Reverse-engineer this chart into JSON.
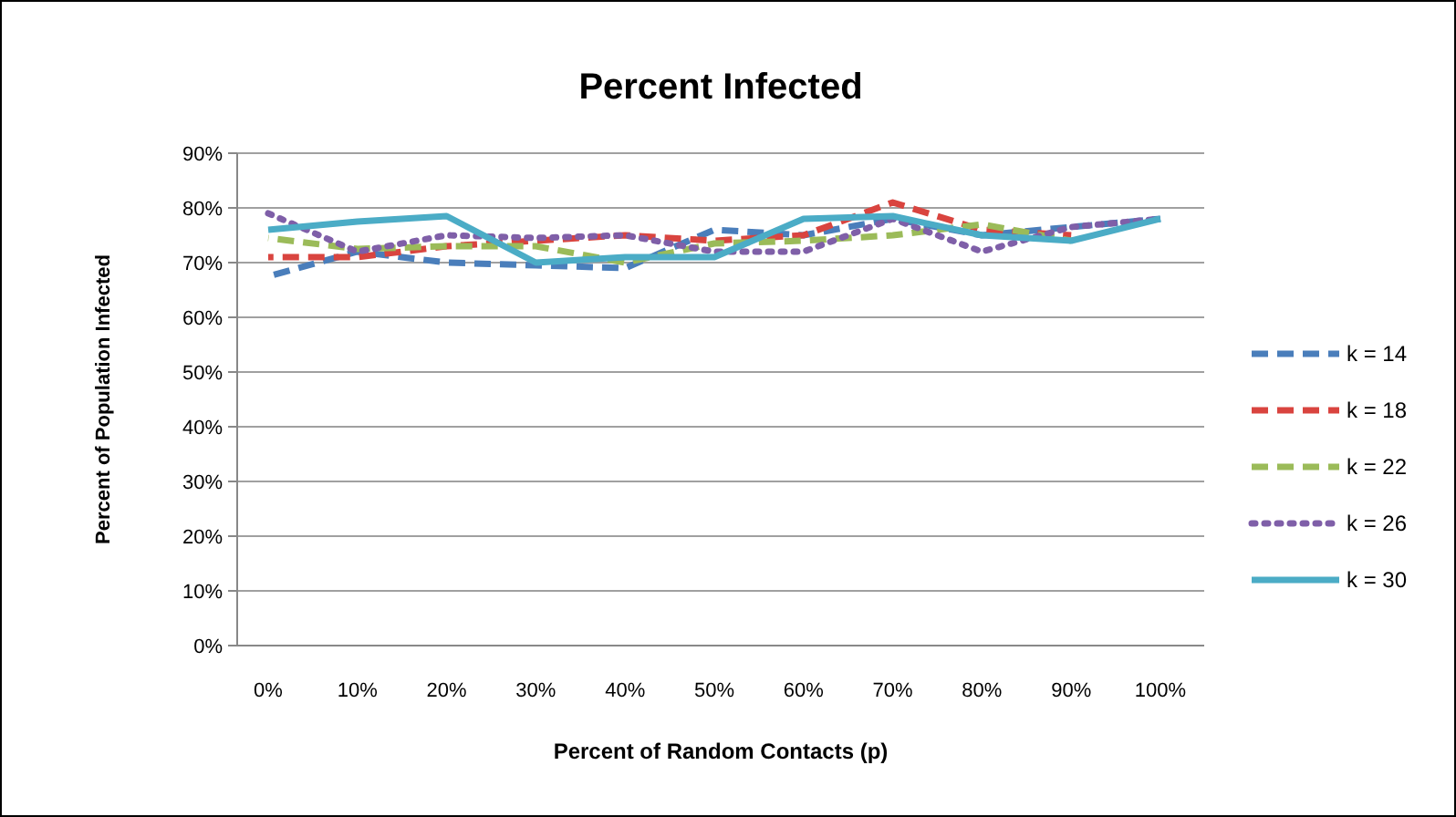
{
  "chart_data": {
    "type": "line",
    "title": "Percent Infected",
    "xlabel": "Percent of Random Contacts (p)",
    "ylabel": "Percent of Population Infected",
    "categories": [
      "0%",
      "10%",
      "20%",
      "30%",
      "40%",
      "50%",
      "60%",
      "70%",
      "80%",
      "90%",
      "100%"
    ],
    "ylim": [
      0,
      90
    ],
    "yticks": [
      {
        "value": 0,
        "label": "0%"
      },
      {
        "value": 10,
        "label": "10%"
      },
      {
        "value": 20,
        "label": "20%"
      },
      {
        "value": 30,
        "label": "30%"
      },
      {
        "value": 40,
        "label": "40%"
      },
      {
        "value": 50,
        "label": "50%"
      },
      {
        "value": 60,
        "label": "60%"
      },
      {
        "value": 70,
        "label": "70%"
      },
      {
        "value": 80,
        "label": "80%"
      },
      {
        "value": 90,
        "label": "90%"
      }
    ],
    "grid": "y",
    "legend": "right",
    "series": [
      {
        "name": "k = 14",
        "color": "#4a7ebb",
        "line_style": "dashed",
        "values": [
          67.5,
          72,
          70,
          69.5,
          69,
          76,
          75,
          78,
          75,
          76.5,
          78
        ]
      },
      {
        "name": "k = 18",
        "color": "#d9443f",
        "line_style": "dashed",
        "values": [
          71,
          71,
          73,
          74,
          75,
          74,
          75,
          81,
          76,
          75,
          null
        ]
      },
      {
        "name": "k = 22",
        "color": "#9bbb59",
        "line_style": "dashed",
        "values": [
          74.5,
          72.5,
          73,
          73,
          70,
          73.5,
          74,
          75,
          77,
          74,
          null
        ]
      },
      {
        "name": "k = 26",
        "color": "#7f5fa8",
        "line_style": "dotted",
        "values": [
          79,
          72,
          75,
          74.5,
          75,
          72,
          72,
          78,
          72,
          76.5,
          78
        ]
      },
      {
        "name": "k = 30",
        "color": "#4bacc6",
        "line_style": "solid",
        "values": [
          76,
          77.5,
          78.5,
          70,
          71,
          71,
          78,
          78.5,
          75,
          74,
          78
        ]
      }
    ]
  }
}
